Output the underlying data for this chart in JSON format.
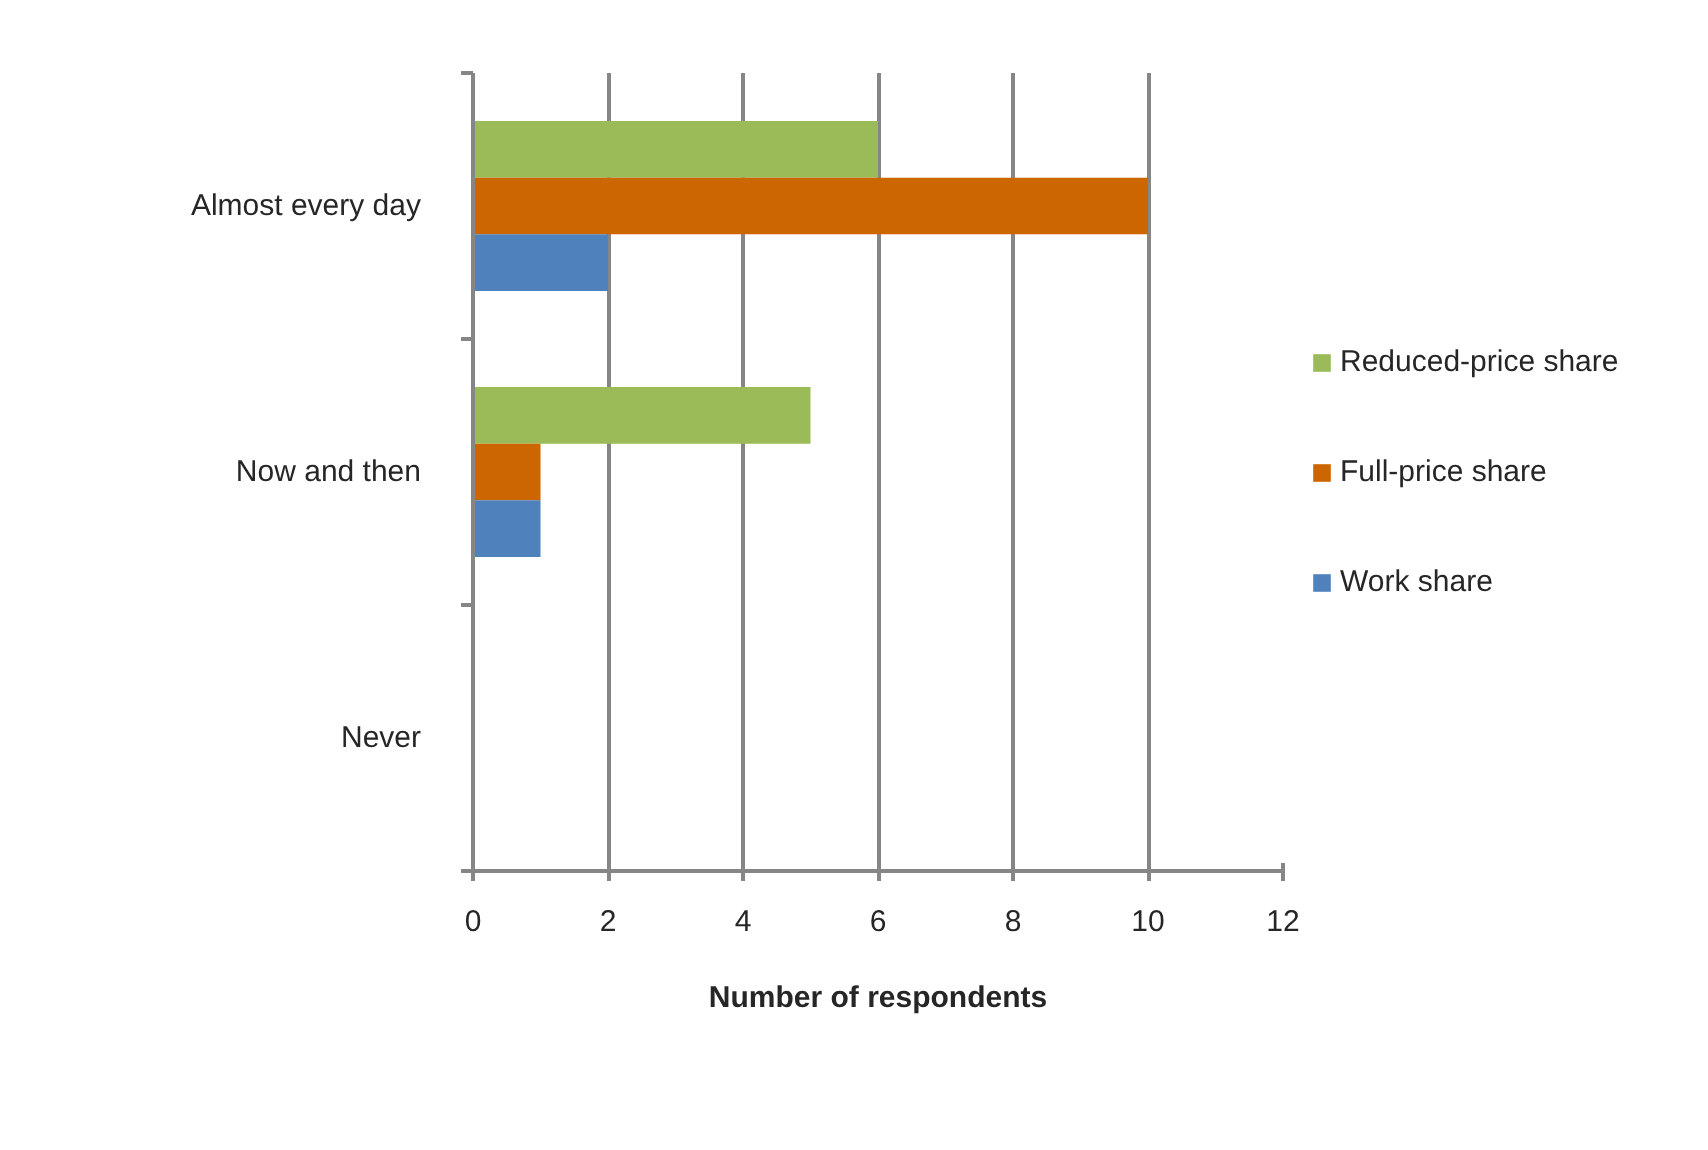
{
  "chart_data": {
    "type": "bar",
    "orientation": "horizontal",
    "categories": [
      "Almost every day",
      "Now and then",
      "Never"
    ],
    "series": [
      {
        "name": "Reduced-price share",
        "color": "#9bbb59",
        "values": [
          6,
          5,
          0
        ]
      },
      {
        "name": "Full-price share",
        "color": "#cc6600",
        "values": [
          10,
          1,
          0
        ]
      },
      {
        "name": "Work share",
        "color": "#4f81bd",
        "values": [
          2,
          1,
          0
        ]
      }
    ],
    "xlabel": "Number of respondents",
    "xlim": [
      0,
      12
    ],
    "xticks": [
      0,
      2,
      4,
      6,
      8,
      10,
      12
    ],
    "grid": "x",
    "legend": "right"
  }
}
